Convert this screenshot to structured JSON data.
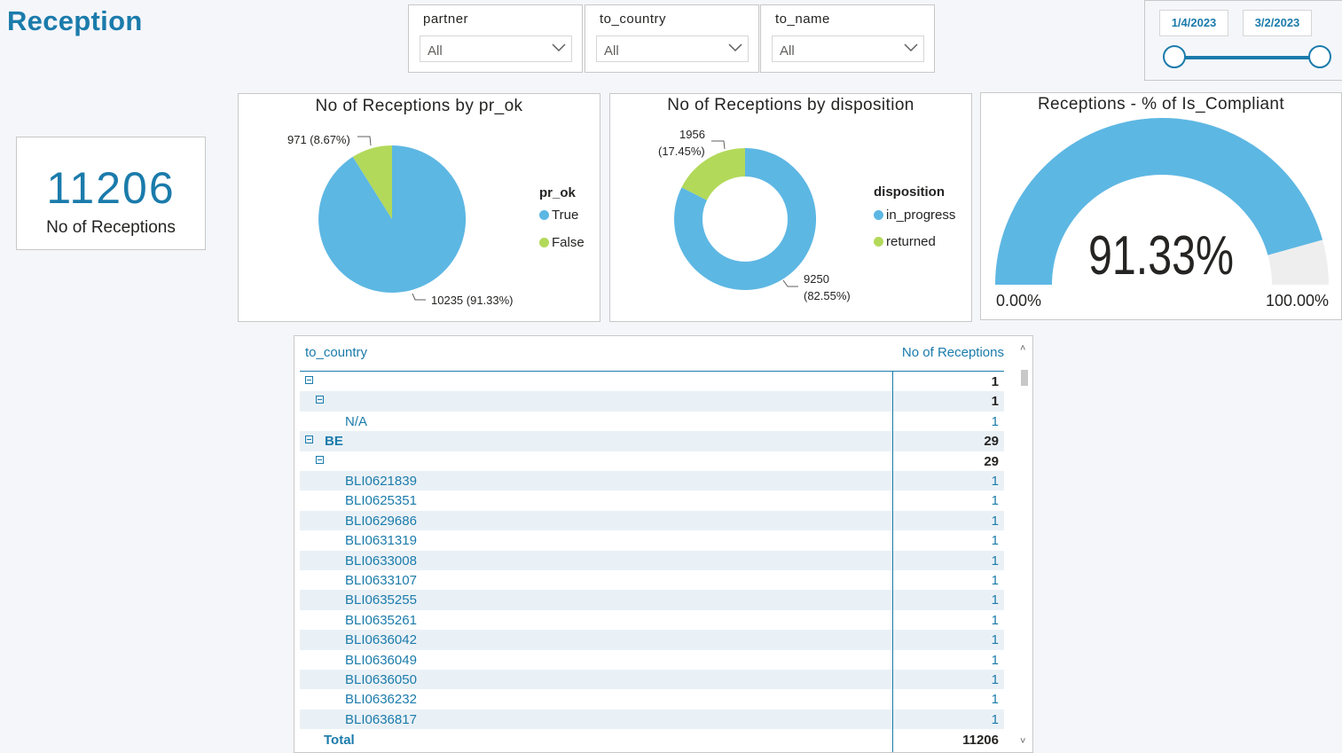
{
  "page": {
    "title": "Reception"
  },
  "slicers": [
    {
      "label": "partner",
      "value": "All"
    },
    {
      "label": "to_country",
      "value": "All"
    },
    {
      "label": "to_name",
      "value": "All"
    }
  ],
  "date_range": {
    "start": "1/4/2023",
    "end": "3/2/2023"
  },
  "kpi": {
    "value": "11206",
    "label": "No of Receptions"
  },
  "pie_pr_ok": {
    "title": "No of Receptions by pr_ok",
    "legend_title": "pr_ok",
    "legend": [
      "True",
      "False"
    ],
    "label_false": "971 (8.67%)",
    "label_true": "10235 (91.33%)",
    "colors": {
      "true": "#5db7e3",
      "false": "#b3d95a"
    }
  },
  "donut_disposition": {
    "title": "No of Receptions by disposition",
    "legend_title": "disposition",
    "legend": [
      "in_progress",
      "returned"
    ],
    "label_returned_value": "1956",
    "label_returned_pct": "(17.45%)",
    "label_inprogress_value": "9250",
    "label_inprogress_pct": "(82.55%)"
  },
  "gauge": {
    "title": "Receptions - % of Is_Compliant",
    "value": "91.33%",
    "fraction": 0.9133,
    "min": "0.00%",
    "max": "100.00%"
  },
  "chart_data": [
    {
      "type": "pie",
      "title": "No of Receptions by pr_ok",
      "categories": [
        "True",
        "False"
      ],
      "values": [
        10235,
        971
      ],
      "percents": [
        91.33,
        8.67
      ],
      "legend": "right"
    },
    {
      "type": "pie",
      "title": "No of Receptions by disposition",
      "categories": [
        "in_progress",
        "returned"
      ],
      "values": [
        9250,
        1956
      ],
      "percents": [
        82.55,
        17.45
      ],
      "legend": "right"
    }
  ],
  "table": {
    "col1": "to_country",
    "col2": "No of Receptions",
    "rows": [
      {
        "label": "",
        "value": "1",
        "level": 0,
        "expand": true,
        "bold": true
      },
      {
        "label": "",
        "value": "1",
        "level": 1,
        "expand": true,
        "bold": true
      },
      {
        "label": "N/A",
        "value": "1",
        "level": 2,
        "expand": false,
        "bold": false
      },
      {
        "label": "BE",
        "value": "29",
        "level": 0,
        "expand": true,
        "bold": true
      },
      {
        "label": "",
        "value": "29",
        "level": 1,
        "expand": true,
        "bold": true
      },
      {
        "label": "BLI0621839",
        "value": "1",
        "level": 2,
        "expand": false,
        "bold": false
      },
      {
        "label": "BLI0625351",
        "value": "1",
        "level": 2,
        "expand": false,
        "bold": false
      },
      {
        "label": "BLI0629686",
        "value": "1",
        "level": 2,
        "expand": false,
        "bold": false
      },
      {
        "label": "BLI0631319",
        "value": "1",
        "level": 2,
        "expand": false,
        "bold": false
      },
      {
        "label": "BLI0633008",
        "value": "1",
        "level": 2,
        "expand": false,
        "bold": false
      },
      {
        "label": "BLI0633107",
        "value": "1",
        "level": 2,
        "expand": false,
        "bold": false
      },
      {
        "label": "BLI0635255",
        "value": "1",
        "level": 2,
        "expand": false,
        "bold": false
      },
      {
        "label": "BLI0635261",
        "value": "1",
        "level": 2,
        "expand": false,
        "bold": false
      },
      {
        "label": "BLI0636042",
        "value": "1",
        "level": 2,
        "expand": false,
        "bold": false
      },
      {
        "label": "BLI0636049",
        "value": "1",
        "level": 2,
        "expand": false,
        "bold": false
      },
      {
        "label": "BLI0636050",
        "value": "1",
        "level": 2,
        "expand": false,
        "bold": false
      },
      {
        "label": "BLI0636232",
        "value": "1",
        "level": 2,
        "expand": false,
        "bold": false
      },
      {
        "label": "BLI0636817",
        "value": "1",
        "level": 2,
        "expand": false,
        "bold": false
      }
    ],
    "total_label": "Total",
    "total_value": "11206"
  },
  "icons": {
    "dropdown": "chevron-down-icon",
    "expand": "collapse-minus-icon",
    "scroll_up": "caret-up-icon",
    "scroll_down": "caret-down-icon"
  }
}
